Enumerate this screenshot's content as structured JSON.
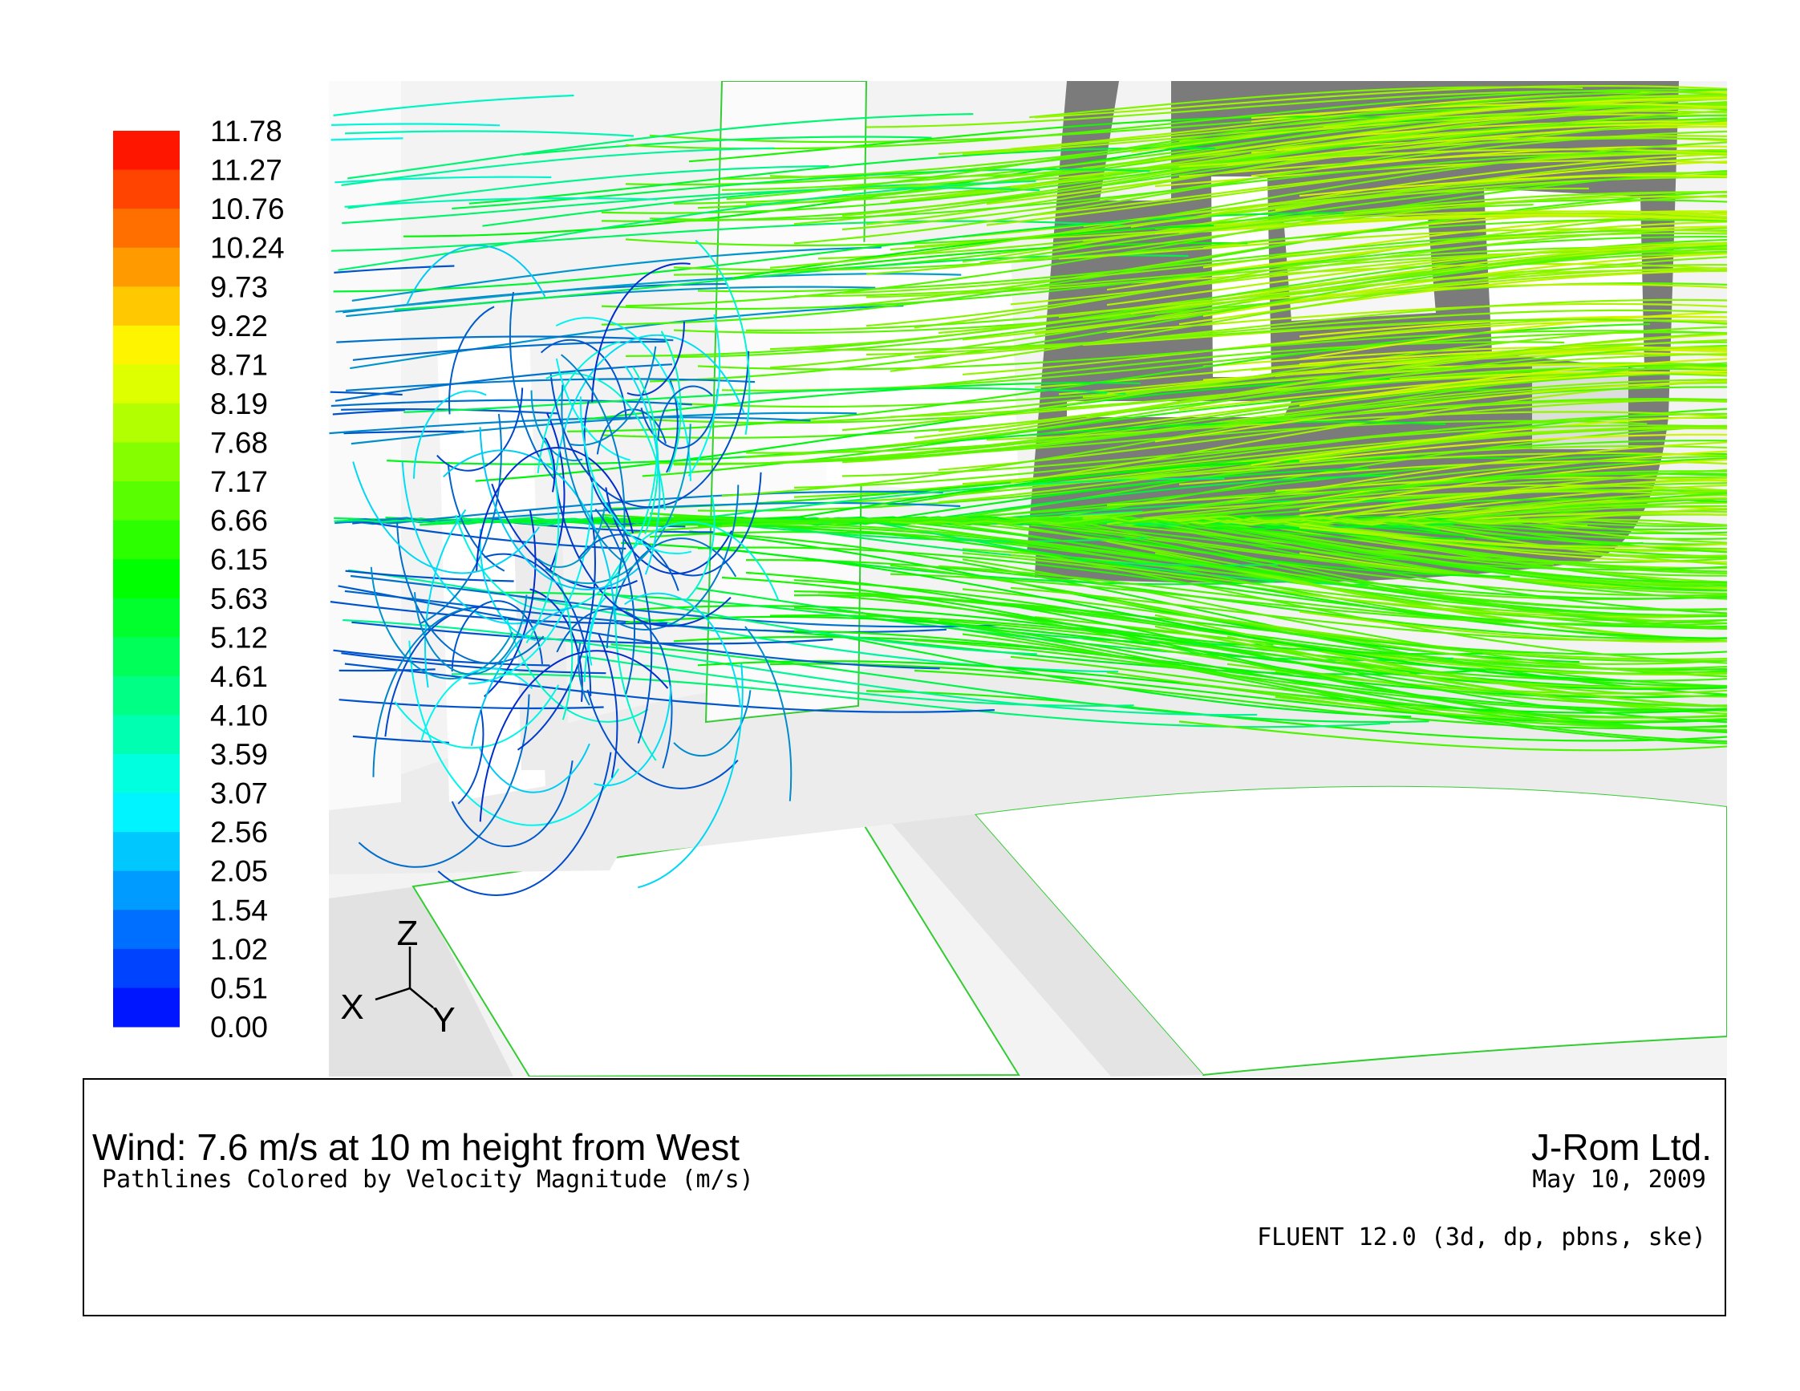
{
  "colorbar": {
    "labels": [
      "11.78",
      "11.27",
      "10.76",
      "10.24",
      "9.73",
      "9.22",
      "8.71",
      "8.19",
      "7.68",
      "7.17",
      "6.66",
      "6.15",
      "5.63",
      "5.12",
      "4.61",
      "4.10",
      "3.59",
      "3.07",
      "2.56",
      "2.05",
      "1.54",
      "1.02",
      "0.51",
      "0.00"
    ]
  },
  "axes": {
    "z": "Z",
    "x": "X",
    "y": "Y"
  },
  "caption": {
    "title": "Wind: 7.6 m/s at 10 m height from West",
    "subtitle": "Pathlines Colored by Velocity Magnitude (m/s)",
    "company": "J-Rom Ltd.",
    "date": "May 10, 2009",
    "solver": "FLUENT 12.0 (3d, dp, pbns, ske)"
  }
}
